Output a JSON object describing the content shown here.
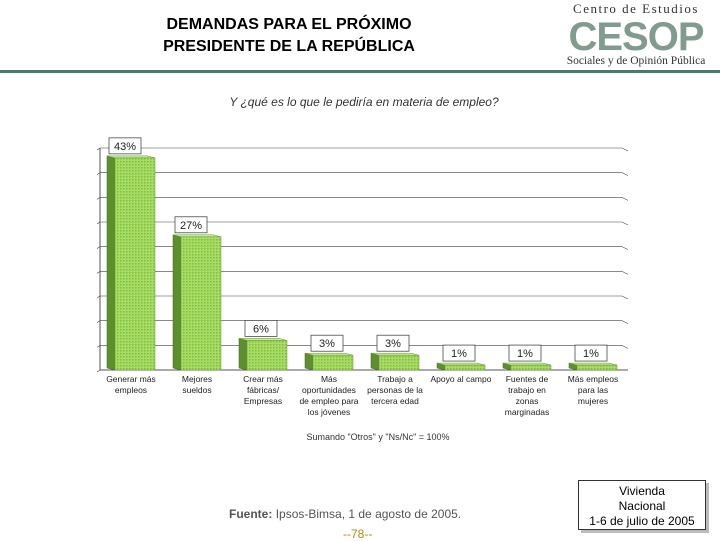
{
  "header": {
    "title_line1": "DEMANDAS PARA EL PRÓXIMO",
    "title_line2": "PRESIDENTE DE LA REPÚBLICA"
  },
  "logo": {
    "line1": "Centro de Estudios",
    "acronym": "CESOP",
    "line2": "Sociales y de Opinión Pública"
  },
  "question": "Y ¿qué es lo que le pediría en materia de empleo?",
  "chart_data": {
    "type": "bar",
    "title": "Y ¿qué es lo que le pediría en materia de empleo?",
    "categories": [
      [
        "Generar más",
        "empleos"
      ],
      [
        "Mejores",
        "sueldos"
      ],
      [
        "Crear más",
        "fábricas/",
        "Empresas"
      ],
      [
        "Más",
        "oportunidades",
        "de empleo para",
        "los jóvenes"
      ],
      [
        "Trabajo a",
        "personas de la",
        "tercera edad"
      ],
      [
        "Apoyo al campo"
      ],
      [
        "Fuentes de",
        "trabajo en",
        "zonas",
        "marginadas"
      ],
      [
        "Más empleos",
        "para las",
        "mujeres"
      ]
    ],
    "values": [
      43,
      27,
      6,
      3,
      3,
      1,
      1,
      1
    ],
    "value_labels": [
      "43%",
      "27%",
      "6%",
      "3%",
      "3%",
      "1%",
      "1%",
      "1%"
    ],
    "unit": "%",
    "ylim": [
      0,
      45
    ],
    "grid": true,
    "bar_color": "#9bd35a",
    "note": "Sumando \"Otros\" y \"Ns/Nc\" = 100%"
  },
  "footer": {
    "source_label": "Fuente:",
    "source_text": "Ipsos-Bimsa, 1 de agosto de 2005.",
    "page_number": "--78--",
    "sample_line1": "Vivienda",
    "sample_line2": "Nacional",
    "sample_line3": "1-6 de julio de 2005"
  }
}
